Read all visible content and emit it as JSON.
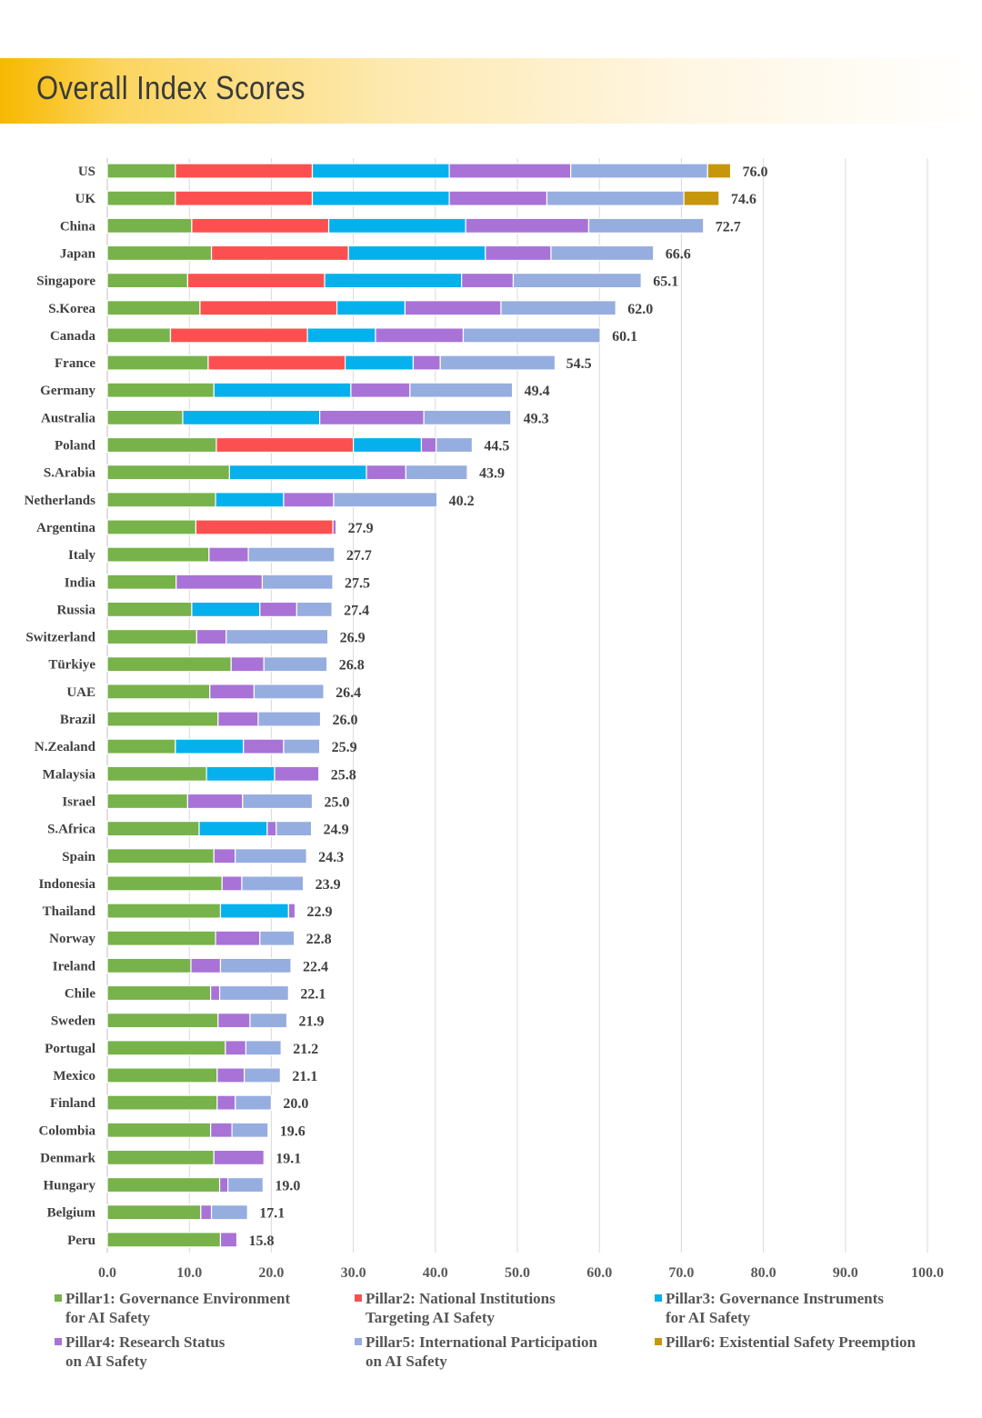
{
  "header": {
    "title": "Overall Index Scores"
  },
  "chart_data": {
    "type": "bar",
    "orientation": "horizontal",
    "stacked": true,
    "title": "",
    "xlabel": "",
    "ylabel": "",
    "xlim": [
      0,
      100
    ],
    "xticks": [
      "0.0",
      "10.0",
      "20.0",
      "30.0",
      "40.0",
      "50.0",
      "60.0",
      "70.0",
      "80.0",
      "90.0",
      "100.0"
    ],
    "grid": "vertical",
    "legend_position": "bottom",
    "categories": [
      "US",
      "UK",
      "China",
      "Japan",
      "Singapore",
      "S.Korea",
      "Canada",
      "France",
      "Germany",
      "Australia",
      "Poland",
      "S.Arabia",
      "Netherlands",
      "Argentina",
      "Italy",
      "India",
      "Russia",
      "Switzerland",
      "Türkiye",
      "UAE",
      "Brazil",
      "N.Zealand",
      "Malaysia",
      "Israel",
      "S.Africa",
      "Spain",
      "Indonesia",
      "Thailand",
      "Norway",
      "Ireland",
      "Chile",
      "Sweden",
      "Portugal",
      "Mexico",
      "Finland",
      "Colombia",
      "Denmark",
      "Hungary",
      "Belgium",
      "Peru"
    ],
    "totals": [
      "76.0",
      "74.6",
      "72.7",
      "66.6",
      "65.1",
      "62.0",
      "60.1",
      "54.5",
      "49.4",
      "49.3",
      "44.5",
      "43.9",
      "40.2",
      "27.9",
      "27.7",
      "27.5",
      "27.4",
      "26.9",
      "26.8",
      "26.4",
      "26.0",
      "25.9",
      "25.8",
      "25.0",
      "24.9",
      "24.3",
      "23.9",
      "22.9",
      "22.8",
      "22.4",
      "22.1",
      "21.9",
      "21.2",
      "21.1",
      "20.0",
      "19.6",
      "19.1",
      "19.0",
      "17.1",
      "15.8"
    ],
    "series": [
      {
        "name": "Pillar1: Governance Environment\nfor AI Safety",
        "color": "#77b24a",
        "values": [
          8.3,
          8.3,
          10.3,
          12.7,
          9.8,
          11.3,
          7.7,
          12.3,
          13.0,
          9.2,
          13.3,
          14.9,
          13.2,
          10.8,
          12.4,
          8.4,
          10.3,
          10.9,
          15.1,
          12.5,
          13.5,
          8.3,
          12.1,
          9.8,
          11.2,
          13.0,
          14.0,
          13.8,
          13.2,
          10.2,
          12.6,
          13.5,
          14.4,
          13.4,
          13.4,
          12.6,
          13.0,
          13.7,
          11.4,
          13.8
        ]
      },
      {
        "name": "Pillar2: National Institutions\nTargeting AI Safety",
        "color": "#fc5050",
        "values": [
          16.7,
          16.7,
          16.7,
          16.7,
          16.7,
          16.7,
          16.7,
          16.7,
          0,
          0,
          16.7,
          0,
          0,
          16.7,
          0,
          0,
          0,
          0,
          0,
          0,
          0,
          0,
          0,
          0,
          0,
          0,
          0,
          0,
          0,
          0,
          0,
          0,
          0,
          0,
          0,
          0,
          0,
          0,
          0,
          0
        ]
      },
      {
        "name": "Pillar3: Governance Instruments\nfor AI Safety",
        "color": "#05b1ec",
        "values": [
          16.7,
          16.7,
          16.7,
          16.7,
          16.7,
          8.3,
          8.3,
          8.3,
          16.7,
          16.7,
          8.3,
          16.7,
          8.3,
          0,
          0,
          0,
          8.3,
          0,
          0,
          0,
          0,
          8.3,
          8.3,
          0,
          8.3,
          0,
          0,
          8.3,
          0,
          0,
          0,
          0,
          0,
          0,
          0,
          0,
          0,
          0,
          0,
          0
        ]
      },
      {
        "name": "Pillar4: Research Status\non AI Safety",
        "color": "#a972d7",
        "values": [
          14.8,
          11.9,
          15.0,
          8.0,
          6.3,
          11.7,
          10.7,
          3.3,
          7.2,
          12.7,
          1.8,
          4.8,
          6.1,
          0.4,
          4.8,
          10.5,
          4.5,
          3.6,
          4.0,
          5.4,
          4.9,
          4.9,
          5.4,
          6.7,
          1.1,
          2.6,
          2.4,
          0.8,
          5.4,
          3.6,
          1.1,
          3.9,
          2.5,
          3.3,
          2.2,
          2.6,
          6.1,
          1.0,
          1.3,
          2.0
        ]
      },
      {
        "name": "Pillar5: International Participation\non AI Safety",
        "color": "#96ade0",
        "values": [
          16.7,
          16.7,
          14.0,
          12.5,
          15.6,
          14.0,
          16.7,
          14.0,
          12.5,
          10.6,
          4.4,
          7.5,
          12.6,
          0,
          10.5,
          8.6,
          4.3,
          12.4,
          7.7,
          8.5,
          7.6,
          4.4,
          0,
          8.5,
          4.3,
          8.7,
          7.5,
          0,
          4.2,
          8.6,
          8.4,
          4.5,
          4.3,
          4.4,
          4.4,
          4.4,
          0,
          4.3,
          4.4,
          0
        ]
      },
      {
        "name": "Pillar6: Existential Safety Preemption",
        "color": "#c6960d",
        "values": [
          2.8,
          4.3,
          0,
          0,
          0,
          0,
          0,
          0,
          0,
          0,
          0,
          0,
          0,
          0,
          0,
          0,
          0,
          0,
          0,
          0,
          0,
          0,
          0,
          0,
          0,
          0,
          0,
          0,
          0,
          0,
          0,
          0,
          0,
          0,
          0,
          0,
          0,
          0,
          0,
          0
        ]
      }
    ]
  }
}
